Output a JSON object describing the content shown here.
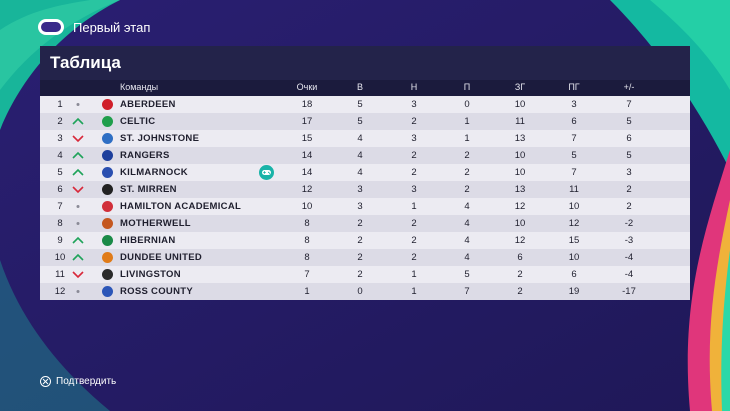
{
  "header": {
    "stage_title": "Первый этап",
    "league_logo_icon": "league-logo-icon"
  },
  "panel": {
    "title": "Таблица"
  },
  "columns": {
    "team": "Команды",
    "points": "Очки",
    "wins": "В",
    "draws": "Н",
    "losses": "П",
    "goals_for": "ЗГ",
    "goals_against": "ПГ",
    "goal_diff": "+/-"
  },
  "rows": [
    {
      "pos": "1",
      "trend": "same",
      "team": "ABERDEEN",
      "crest": "#d01f2a",
      "pts": "18",
      "w": "5",
      "d": "3",
      "l": "0",
      "gf": "10",
      "ga": "3",
      "gd": "7"
    },
    {
      "pos": "2",
      "trend": "up",
      "team": "CELTIC",
      "crest": "#1f9e4b",
      "pts": "17",
      "w": "5",
      "d": "2",
      "l": "1",
      "gf": "11",
      "ga": "6",
      "gd": "5"
    },
    {
      "pos": "3",
      "trend": "down",
      "team": "ST. JOHNSTONE",
      "crest": "#2f6fc4",
      "pts": "15",
      "w": "4",
      "d": "3",
      "l": "1",
      "gf": "13",
      "ga": "7",
      "gd": "6"
    },
    {
      "pos": "4",
      "trend": "up",
      "team": "RANGERS",
      "crest": "#1d3f9c",
      "pts": "14",
      "w": "4",
      "d": "2",
      "l": "2",
      "gf": "10",
      "ga": "5",
      "gd": "5"
    },
    {
      "pos": "5",
      "trend": "up",
      "team": "KILMARNOCK",
      "crest": "#2a4fb0",
      "pts": "14",
      "w": "4",
      "d": "2",
      "l": "2",
      "gf": "10",
      "ga": "7",
      "gd": "3",
      "controlled": true
    },
    {
      "pos": "6",
      "trend": "down",
      "team": "ST. MIRREN",
      "crest": "#222222",
      "pts": "12",
      "w": "3",
      "d": "3",
      "l": "2",
      "gf": "13",
      "ga": "11",
      "gd": "2"
    },
    {
      "pos": "7",
      "trend": "same",
      "team": "HAMILTON ACADEMICAL",
      "crest": "#d12f3a",
      "pts": "10",
      "w": "3",
      "d": "1",
      "l": "4",
      "gf": "12",
      "ga": "10",
      "gd": "2"
    },
    {
      "pos": "8",
      "trend": "same",
      "team": "MOTHERWELL",
      "crest": "#c4571f",
      "pts": "8",
      "w": "2",
      "d": "2",
      "l": "4",
      "gf": "10",
      "ga": "12",
      "gd": "-2"
    },
    {
      "pos": "9",
      "trend": "up",
      "team": "HIBERNIAN",
      "crest": "#1a8a47",
      "pts": "8",
      "w": "2",
      "d": "2",
      "l": "4",
      "gf": "12",
      "ga": "15",
      "gd": "-3"
    },
    {
      "pos": "10",
      "trend": "up",
      "team": "DUNDEE UNITED",
      "crest": "#e07b18",
      "pts": "8",
      "w": "2",
      "d": "2",
      "l": "4",
      "gf": "6",
      "ga": "10",
      "gd": "-4"
    },
    {
      "pos": "11",
      "trend": "down",
      "team": "LIVINGSTON",
      "crest": "#2b2b2b",
      "pts": "7",
      "w": "2",
      "d": "1",
      "l": "5",
      "gf": "2",
      "ga": "6",
      "gd": "-4"
    },
    {
      "pos": "12",
      "trend": "same",
      "team": "ROSS COUNTY",
      "crest": "#2c56b8",
      "pts": "1",
      "w": "0",
      "d": "1",
      "l": "7",
      "gf": "2",
      "ga": "19",
      "gd": "-17"
    }
  ],
  "trend_colors": {
    "up": "#1fa35a",
    "down": "#d8283a",
    "same": "#8a8a96"
  },
  "footer": {
    "confirm_label": "Подтвердить"
  }
}
